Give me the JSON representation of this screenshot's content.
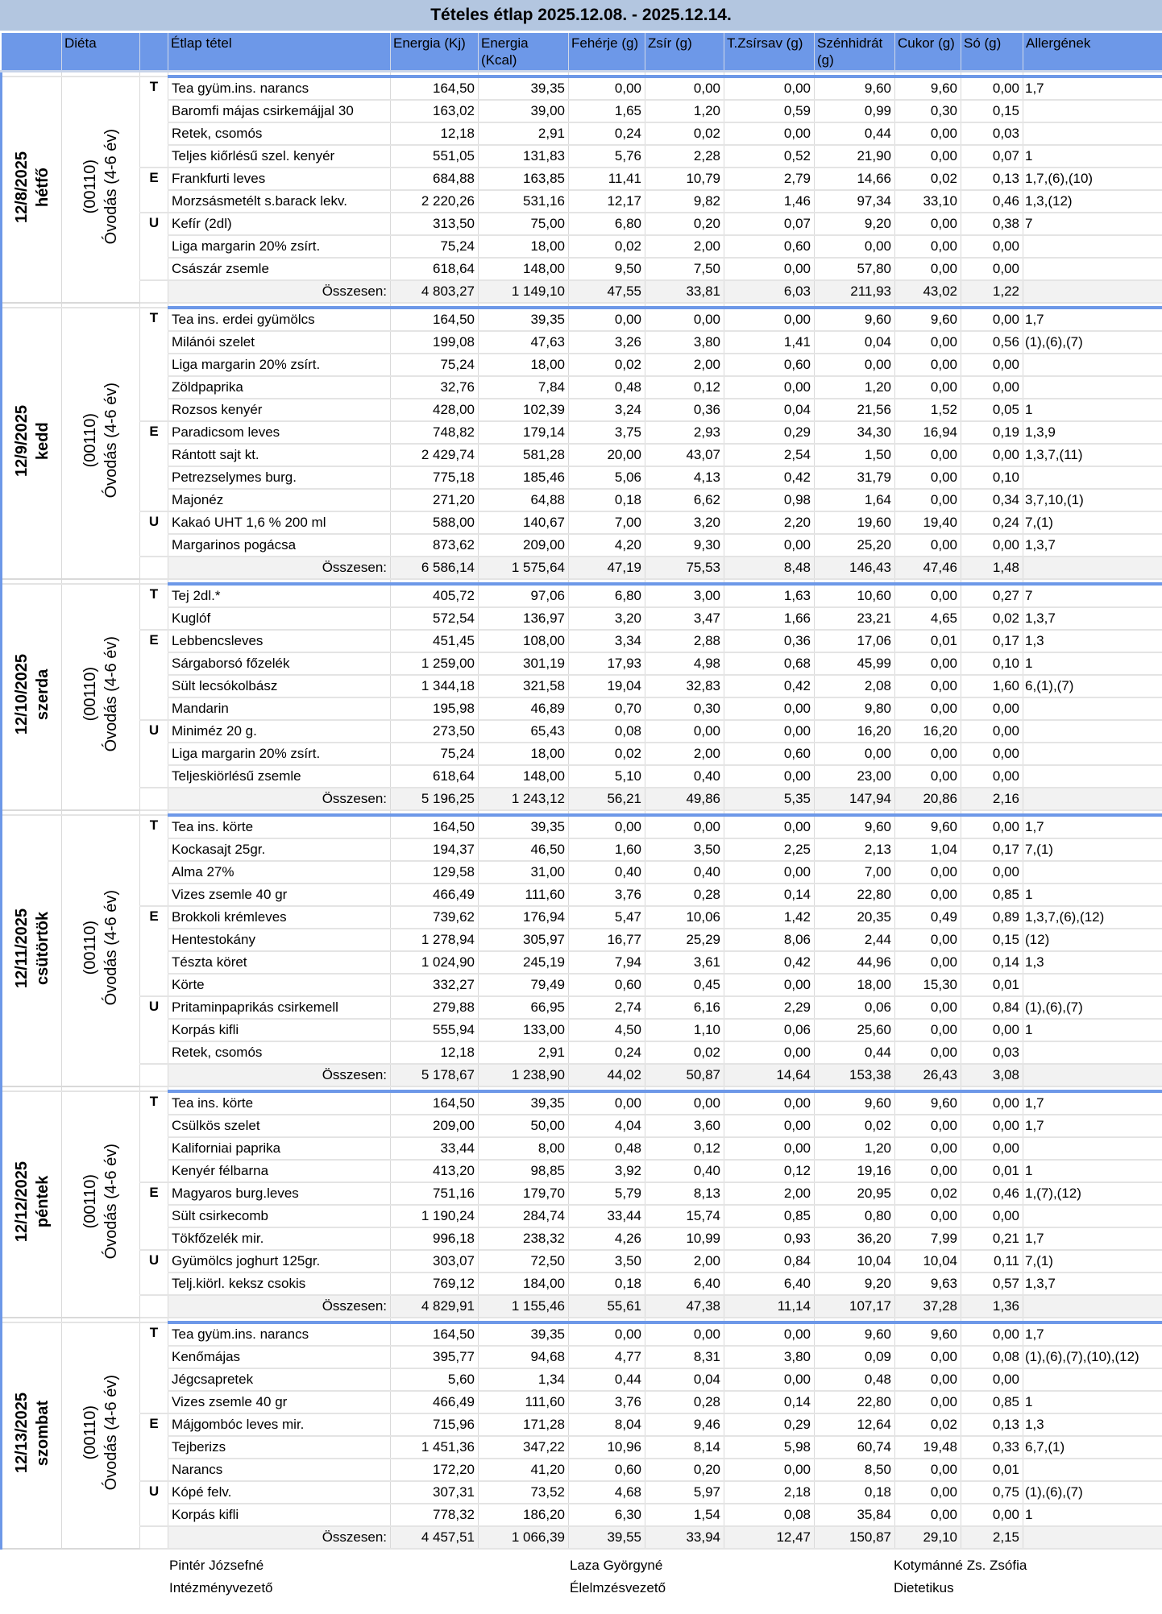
{
  "title": "Tételes étlap 2025.12.08. - 2025.12.14.",
  "columns": [
    "",
    "Diéta",
    "",
    "Étlap tétel",
    "Energia (Kj)",
    "Energia (Kcal)",
    "Fehérje (g)",
    "Zsír (g)",
    "T.Zsírsav (g)",
    "Szénhidrát (g)",
    "Cukor (g)",
    "Só (g)",
    "Allergének"
  ],
  "total_label": "Összesen:",
  "colors": {
    "header_blue": "#6d98e8",
    "title_bg": "#b3c6e0",
    "total_bg": "#f2f2f2"
  },
  "days": [
    {
      "date": "12/8/2025",
      "weekday": "hétfő",
      "diet_code": "(00110)",
      "diet_name": "Óvodás (4-6 év)",
      "rows": [
        [
          "T",
          "Tea gyüm.ins. narancs",
          "164,50",
          "39,35",
          "0,00",
          "0,00",
          "0,00",
          "9,60",
          "9,60",
          "0,00",
          "1,7"
        ],
        [
          "",
          "Baromfi májas csirkemájjal 30",
          "163,02",
          "39,00",
          "1,65",
          "1,20",
          "0,59",
          "0,99",
          "0,30",
          "0,15",
          ""
        ],
        [
          "",
          "Retek, csomós",
          "12,18",
          "2,91",
          "0,24",
          "0,02",
          "0,00",
          "0,44",
          "0,00",
          "0,03",
          ""
        ],
        [
          "",
          "Teljes kiőrlésű szel. kenyér",
          "551,05",
          "131,83",
          "5,76",
          "2,28",
          "0,52",
          "21,90",
          "0,00",
          "0,07",
          "1"
        ],
        [
          "E",
          "Frankfurti leves",
          "684,88",
          "163,85",
          "11,41",
          "10,79",
          "2,79",
          "14,66",
          "0,02",
          "0,13",
          "1,7,(6),(10)"
        ],
        [
          "",
          "Morzsásmetélt s.barack lekv.",
          "2 220,26",
          "531,16",
          "12,17",
          "9,82",
          "1,46",
          "97,34",
          "33,10",
          "0,46",
          "1,3,(12)"
        ],
        [
          "U",
          "Kefír (2dl)",
          "313,50",
          "75,00",
          "6,80",
          "0,20",
          "0,07",
          "9,20",
          "0,00",
          "0,38",
          "7"
        ],
        [
          "",
          "Liga margarin 20% zsírt.",
          "75,24",
          "18,00",
          "0,02",
          "2,00",
          "0,60",
          "0,00",
          "0,00",
          "0,00",
          ""
        ],
        [
          "",
          "Császár zsemle",
          "618,64",
          "148,00",
          "9,50",
          "7,50",
          "0,00",
          "57,80",
          "0,00",
          "0,00",
          ""
        ]
      ],
      "total": [
        "4 803,27",
        "1 149,10",
        "47,55",
        "33,81",
        "6,03",
        "211,93",
        "43,02",
        "1,22"
      ]
    },
    {
      "date": "12/9/2025",
      "weekday": "kedd",
      "diet_code": "(00110)",
      "diet_name": "Óvodás (4-6 év)",
      "rows": [
        [
          "T",
          "Tea ins. erdei gyümölcs",
          "164,50",
          "39,35",
          "0,00",
          "0,00",
          "0,00",
          "9,60",
          "9,60",
          "0,00",
          "1,7"
        ],
        [
          "",
          "Milánói szelet",
          "199,08",
          "47,63",
          "3,26",
          "3,80",
          "1,41",
          "0,04",
          "0,00",
          "0,56",
          "(1),(6),(7)"
        ],
        [
          "",
          "Liga margarin 20% zsírt.",
          "75,24",
          "18,00",
          "0,02",
          "2,00",
          "0,60",
          "0,00",
          "0,00",
          "0,00",
          ""
        ],
        [
          "",
          "Zöldpaprika",
          "32,76",
          "7,84",
          "0,48",
          "0,12",
          "0,00",
          "1,20",
          "0,00",
          "0,00",
          ""
        ],
        [
          "",
          "Rozsos kenyér",
          "428,00",
          "102,39",
          "3,24",
          "0,36",
          "0,04",
          "21,56",
          "1,52",
          "0,05",
          "1"
        ],
        [
          "E",
          "Paradicsom leves",
          "748,82",
          "179,14",
          "3,75",
          "2,93",
          "0,29",
          "34,30",
          "16,94",
          "0,19",
          "1,3,9"
        ],
        [
          "",
          "Rántott sajt kt.",
          "2 429,74",
          "581,28",
          "20,00",
          "43,07",
          "2,54",
          "1,50",
          "0,00",
          "0,00",
          "1,3,7,(11)"
        ],
        [
          "",
          "Petrezselymes burg.",
          "775,18",
          "185,46",
          "5,06",
          "4,13",
          "0,42",
          "31,79",
          "0,00",
          "0,10",
          ""
        ],
        [
          "",
          "Majonéz",
          "271,20",
          "64,88",
          "0,18",
          "6,62",
          "0,98",
          "1,64",
          "0,00",
          "0,34",
          "3,7,10,(1)"
        ],
        [
          "U",
          "Kakaó UHT 1,6 % 200 ml",
          "588,00",
          "140,67",
          "7,00",
          "3,20",
          "2,20",
          "19,60",
          "19,40",
          "0,24",
          "7,(1)"
        ],
        [
          "",
          "Margarinos pogácsa",
          "873,62",
          "209,00",
          "4,20",
          "9,30",
          "0,00",
          "25,20",
          "0,00",
          "0,00",
          "1,3,7"
        ]
      ],
      "total": [
        "6 586,14",
        "1 575,64",
        "47,19",
        "75,53",
        "8,48",
        "146,43",
        "47,46",
        "1,48"
      ]
    },
    {
      "date": "12/10/2025",
      "weekday": "szerda",
      "diet_code": "(00110)",
      "diet_name": "Óvodás (4-6 év)",
      "rows": [
        [
          "T",
          "Tej 2dl.*",
          "405,72",
          "97,06",
          "6,80",
          "3,00",
          "1,63",
          "10,60",
          "0,00",
          "0,27",
          "7"
        ],
        [
          "",
          "Kuglóf",
          "572,54",
          "136,97",
          "3,20",
          "3,47",
          "1,66",
          "23,21",
          "4,65",
          "0,02",
          "1,3,7"
        ],
        [
          "E",
          "Lebbencsleves",
          "451,45",
          "108,00",
          "3,34",
          "2,88",
          "0,36",
          "17,06",
          "0,01",
          "0,17",
          "1,3"
        ],
        [
          "",
          "Sárgaborsó főzelék",
          "1 259,00",
          "301,19",
          "17,93",
          "4,98",
          "0,68",
          "45,99",
          "0,00",
          "0,10",
          "1"
        ],
        [
          "",
          "Sült lecsókolbász",
          "1 344,18",
          "321,58",
          "19,04",
          "32,83",
          "0,42",
          "2,08",
          "0,00",
          "1,60",
          "6,(1),(7)"
        ],
        [
          "",
          "Mandarin",
          "195,98",
          "46,89",
          "0,70",
          "0,30",
          "0,00",
          "9,80",
          "0,00",
          "0,00",
          ""
        ],
        [
          "U",
          "Miniméz 20 g.",
          "273,50",
          "65,43",
          "0,08",
          "0,00",
          "0,00",
          "16,20",
          "16,20",
          "0,00",
          ""
        ],
        [
          "",
          "Liga margarin 20% zsírt.",
          "75,24",
          "18,00",
          "0,02",
          "2,00",
          "0,60",
          "0,00",
          "0,00",
          "0,00",
          ""
        ],
        [
          "",
          "Teljeskiörlésű zsemle",
          "618,64",
          "148,00",
          "5,10",
          "0,40",
          "0,00",
          "23,00",
          "0,00",
          "0,00",
          ""
        ]
      ],
      "total": [
        "5 196,25",
        "1 243,12",
        "56,21",
        "49,86",
        "5,35",
        "147,94",
        "20,86",
        "2,16"
      ]
    },
    {
      "date": "12/11/2025",
      "weekday": "csütörtök",
      "diet_code": "(00110)",
      "diet_name": "Óvodás (4-6 év)",
      "rows": [
        [
          "T",
          "Tea ins. körte",
          "164,50",
          "39,35",
          "0,00",
          "0,00",
          "0,00",
          "9,60",
          "9,60",
          "0,00",
          "1,7"
        ],
        [
          "",
          "Kockasajt 25gr.",
          "194,37",
          "46,50",
          "1,60",
          "3,50",
          "2,25",
          "2,13",
          "1,04",
          "0,17",
          "7,(1)"
        ],
        [
          "",
          "Alma 27%",
          "129,58",
          "31,00",
          "0,40",
          "0,40",
          "0,00",
          "7,00",
          "0,00",
          "0,00",
          ""
        ],
        [
          "",
          "Vizes zsemle 40 gr",
          "466,49",
          "111,60",
          "3,76",
          "0,28",
          "0,14",
          "22,80",
          "0,00",
          "0,85",
          "1"
        ],
        [
          "E",
          "Brokkoli krémleves",
          "739,62",
          "176,94",
          "5,47",
          "10,06",
          "1,42",
          "20,35",
          "0,49",
          "0,89",
          "1,3,7,(6),(12)"
        ],
        [
          "",
          "Hentestokány",
          "1 278,94",
          "305,97",
          "16,77",
          "25,29",
          "8,06",
          "2,44",
          "0,00",
          "0,15",
          "(12)"
        ],
        [
          "",
          "Tészta köret",
          "1 024,90",
          "245,19",
          "7,94",
          "3,61",
          "0,42",
          "44,96",
          "0,00",
          "0,14",
          "1,3"
        ],
        [
          "",
          "Körte",
          "332,27",
          "79,49",
          "0,60",
          "0,45",
          "0,00",
          "18,00",
          "15,30",
          "0,01",
          ""
        ],
        [
          "U",
          "Pritaminpaprikás csirkemell",
          "279,88",
          "66,95",
          "2,74",
          "6,16",
          "2,29",
          "0,06",
          "0,00",
          "0,84",
          "(1),(6),(7)"
        ],
        [
          "",
          "Korpás kifli",
          "555,94",
          "133,00",
          "4,50",
          "1,10",
          "0,06",
          "25,60",
          "0,00",
          "0,00",
          "1"
        ],
        [
          "",
          "Retek, csomós",
          "12,18",
          "2,91",
          "0,24",
          "0,02",
          "0,00",
          "0,44",
          "0,00",
          "0,03",
          ""
        ]
      ],
      "total": [
        "5 178,67",
        "1 238,90",
        "44,02",
        "50,87",
        "14,64",
        "153,38",
        "26,43",
        "3,08"
      ]
    },
    {
      "date": "12/12/2025",
      "weekday": "péntek",
      "diet_code": "(00110)",
      "diet_name": "Óvodás (4-6 év)",
      "rows": [
        [
          "T",
          "Tea ins. körte",
          "164,50",
          "39,35",
          "0,00",
          "0,00",
          "0,00",
          "9,60",
          "9,60",
          "0,00",
          "1,7"
        ],
        [
          "",
          "Csülkös szelet",
          "209,00",
          "50,00",
          "4,04",
          "3,60",
          "0,00",
          "0,02",
          "0,00",
          "0,00",
          "1,7"
        ],
        [
          "",
          "Kaliforniai paprika",
          "33,44",
          "8,00",
          "0,48",
          "0,12",
          "0,00",
          "1,20",
          "0,00",
          "0,00",
          ""
        ],
        [
          "",
          "Kenyér félbarna",
          "413,20",
          "98,85",
          "3,92",
          "0,40",
          "0,12",
          "19,16",
          "0,00",
          "0,01",
          "1"
        ],
        [
          "E",
          "Magyaros burg.leves",
          "751,16",
          "179,70",
          "5,79",
          "8,13",
          "2,00",
          "20,95",
          "0,02",
          "0,46",
          "1,(7),(12)"
        ],
        [
          "",
          "Sült csirkecomb",
          "1 190,24",
          "284,74",
          "33,44",
          "15,74",
          "0,85",
          "0,80",
          "0,00",
          "0,00",
          ""
        ],
        [
          "",
          "Tökfőzelék mir.",
          "996,18",
          "238,32",
          "4,26",
          "10,99",
          "0,93",
          "36,20",
          "7,99",
          "0,21",
          "1,7"
        ],
        [
          "U",
          "Gyümölcs joghurt 125gr.",
          "303,07",
          "72,50",
          "3,50",
          "2,00",
          "0,84",
          "10,04",
          "10,04",
          "0,11",
          "7,(1)"
        ],
        [
          "",
          "Telj.kiörl. keksz csokis",
          "769,12",
          "184,00",
          "0,18",
          "6,40",
          "6,40",
          "9,20",
          "9,63",
          "0,57",
          "1,3,7"
        ]
      ],
      "total": [
        "4 829,91",
        "1 155,46",
        "55,61",
        "47,38",
        "11,14",
        "107,17",
        "37,28",
        "1,36"
      ]
    },
    {
      "date": "12/13/2025",
      "weekday": "szombat",
      "diet_code": "(00110)",
      "diet_name": "Óvodás (4-6 év)",
      "rows": [
        [
          "T",
          "Tea gyüm.ins. narancs",
          "164,50",
          "39,35",
          "0,00",
          "0,00",
          "0,00",
          "9,60",
          "9,60",
          "0,00",
          "1,7"
        ],
        [
          "",
          "Kenőmájas",
          "395,77",
          "94,68",
          "4,77",
          "8,31",
          "3,80",
          "0,09",
          "0,00",
          "0,08",
          "(1),(6),(7),(10),(12)"
        ],
        [
          "",
          "Jégcsapretek",
          "5,60",
          "1,34",
          "0,44",
          "0,04",
          "0,00",
          "0,48",
          "0,00",
          "0,00",
          ""
        ],
        [
          "",
          "Vizes zsemle 40 gr",
          "466,49",
          "111,60",
          "3,76",
          "0,28",
          "0,14",
          "22,80",
          "0,00",
          "0,85",
          "1"
        ],
        [
          "E",
          "Májgombóc leves mir.",
          "715,96",
          "171,28",
          "8,04",
          "9,46",
          "0,29",
          "12,64",
          "0,02",
          "0,13",
          "1,3"
        ],
        [
          "",
          "Tejberizs",
          "1 451,36",
          "347,22",
          "10,96",
          "8,14",
          "5,98",
          "60,74",
          "19,48",
          "0,33",
          "6,7,(1)"
        ],
        [
          "",
          "Narancs",
          "172,20",
          "41,20",
          "0,60",
          "0,20",
          "0,00",
          "8,50",
          "0,00",
          "0,01",
          ""
        ],
        [
          "U",
          "Kópé felv.",
          "307,31",
          "73,52",
          "4,68",
          "5,97",
          "2,18",
          "0,18",
          "0,00",
          "0,75",
          "(1),(6),(7)"
        ],
        [
          "",
          "Korpás kifli",
          "778,32",
          "186,20",
          "6,30",
          "1,54",
          "0,08",
          "35,84",
          "0,00",
          "0,00",
          "1"
        ]
      ],
      "total": [
        "4 457,51",
        "1 066,39",
        "39,55",
        "33,94",
        "12,47",
        "150,87",
        "29,10",
        "2,15"
      ]
    }
  ],
  "signatures": [
    {
      "name": "Pintér Józsefné",
      "role": "Intézményvezető"
    },
    {
      "name": "Laza Györgyné",
      "role": "Élelmzésvezető"
    },
    {
      "name": "Kotymánné Zs. Zsófia",
      "role": "Dietetikus"
    }
  ]
}
